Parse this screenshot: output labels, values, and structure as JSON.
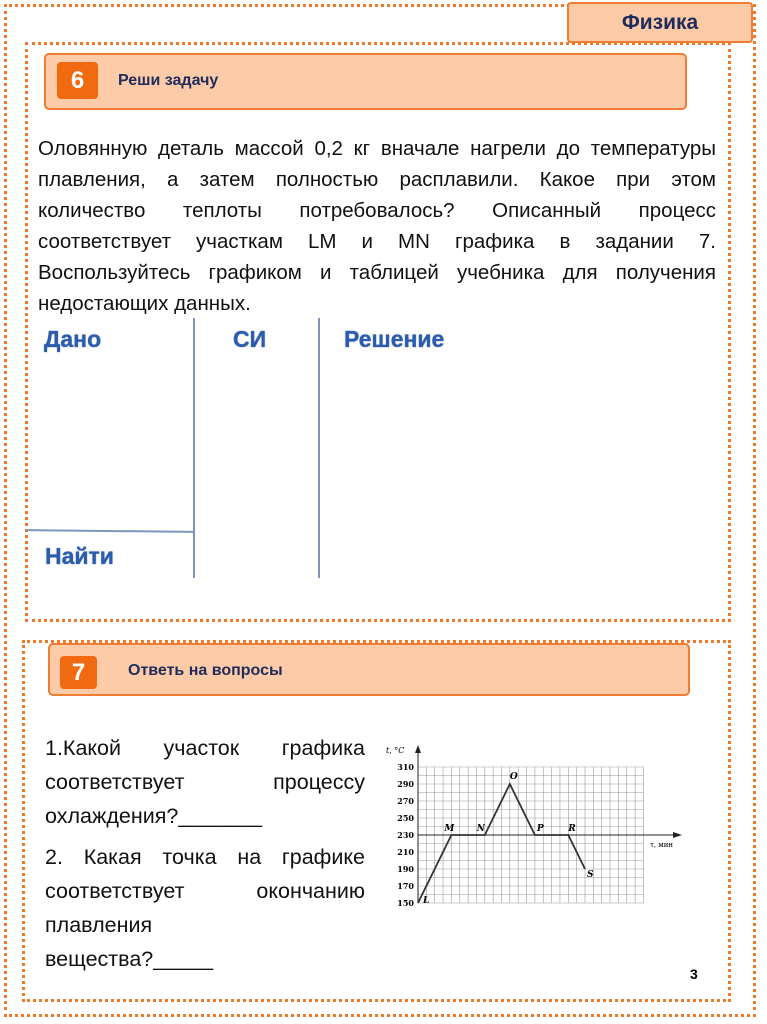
{
  "subject_tab": "Физика",
  "task6": {
    "number": "6",
    "title": "Реши задачу",
    "text": "Оловянную деталь массой 0,2 кг вначале нагрели до температуры плавления, а затем полностью расплавили. Какое при этом количество теплоты потребовалось? Описанный процесс соответствует участкам LM и MN графика в задании 7. Воспользуйтесь графиком и таблицей учебника для получения недостающих данных.",
    "given_label": "Дано",
    "si_label": "СИ",
    "solution_label": "Решение",
    "find_label": "Найти"
  },
  "task7": {
    "number": "7",
    "title": "Ответь на вопросы",
    "question1": "1.Какой участок графика соответствует процессу охлаждения?_______",
    "question2_a": "2. Какая точка на графике соответствует окончанию плавления",
    "question2_b": "вещества?_____"
  },
  "page_number": "3",
  "colors": {
    "accent": "#f07a2a",
    "header_fill": "#fdcba7",
    "label_blue": "#2a5cb0"
  },
  "chart_data": {
    "type": "line",
    "ylabel": "t, °C",
    "xlabel": "τ, мин",
    "yticks": [
      150,
      170,
      190,
      210,
      230,
      250,
      270,
      290,
      310
    ],
    "ylim": [
      150,
      310
    ],
    "grid": true,
    "points": [
      {
        "label": "L",
        "x": 0,
        "y": 150
      },
      {
        "label": "M",
        "x": 4,
        "y": 230
      },
      {
        "label": "N",
        "x": 8,
        "y": 230
      },
      {
        "label": "O",
        "x": 11,
        "y": 290
      },
      {
        "label": "P",
        "x": 14,
        "y": 230
      },
      {
        "label": "R",
        "x": 18,
        "y": 230
      },
      {
        "label": "S",
        "x": 20,
        "y": 190
      }
    ]
  }
}
